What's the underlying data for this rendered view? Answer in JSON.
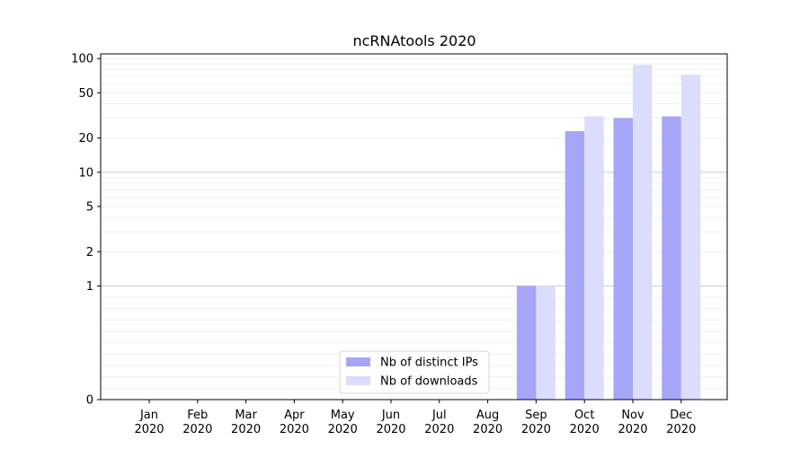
{
  "chart_data": {
    "type": "bar",
    "title": "ncRNAtools 2020",
    "xlabel": "",
    "ylabel": "",
    "yscale": "symlog",
    "ylim": [
      0,
      110
    ],
    "yticks": [
      0,
      1,
      2,
      5,
      10,
      20,
      50,
      100
    ],
    "ytick_labels": [
      "0",
      "1",
      "2",
      "5",
      "10",
      "20",
      "50",
      "100"
    ],
    "categories": [
      {
        "month": "Jan",
        "year": "2020"
      },
      {
        "month": "Feb",
        "year": "2020"
      },
      {
        "month": "Mar",
        "year": "2020"
      },
      {
        "month": "Apr",
        "year": "2020"
      },
      {
        "month": "May",
        "year": "2020"
      },
      {
        "month": "Jun",
        "year": "2020"
      },
      {
        "month": "Jul",
        "year": "2020"
      },
      {
        "month": "Aug",
        "year": "2020"
      },
      {
        "month": "Sep",
        "year": "2020"
      },
      {
        "month": "Oct",
        "year": "2020"
      },
      {
        "month": "Nov",
        "year": "2020"
      },
      {
        "month": "Dec",
        "year": "2020"
      }
    ],
    "series": [
      {
        "name": "Nb of distinct IPs",
        "color": "#a6a6f8",
        "values": [
          0,
          0,
          0,
          0,
          0,
          0,
          0,
          0,
          1,
          23,
          30,
          31
        ]
      },
      {
        "name": "Nb of downloads",
        "color": "#dcdcfc",
        "values": [
          0,
          0,
          0,
          0,
          0,
          0,
          0,
          0,
          1,
          31,
          88,
          72
        ]
      }
    ],
    "grid": "horizontal",
    "legend": "bottom-center"
  }
}
